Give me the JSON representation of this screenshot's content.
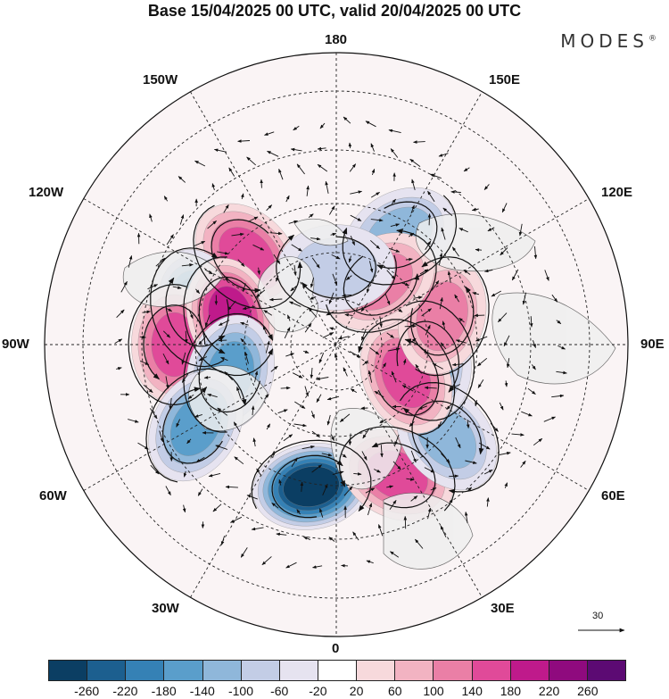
{
  "title": "Base 15/04/2025 00 UTC, valid 20/04/2025 00 UTC",
  "brand": "MODES",
  "brand_mark": "®",
  "longitude_labels": {
    "top": "180",
    "bottom": "0",
    "left": "90W",
    "right": "90E",
    "upper_left_1": "150W",
    "upper_left_2": "120W",
    "upper_right_1": "150E",
    "upper_right_2": "120E",
    "lower_left_1": "60W",
    "lower_left_2": "30W",
    "lower_right_1": "60E",
    "lower_right_2": "30E"
  },
  "reference_vector_label": "30",
  "colorbar": {
    "colors": [
      "#0b3e63",
      "#1c5f8f",
      "#3581b5",
      "#5a9ecb",
      "#8fb7da",
      "#c3cde6",
      "#e6e3f0",
      "#ffffff",
      "#f7d9dc",
      "#f2b3c2",
      "#ea7fa6",
      "#e04a99",
      "#bf1a8b",
      "#8f0a7e",
      "#5c0a73"
    ],
    "tick_labels": [
      "-260",
      "-220",
      "-180",
      "-140",
      "-100",
      "-60",
      "-20",
      "20",
      "60",
      "100",
      "140",
      "180",
      "220",
      "260"
    ]
  },
  "map_data": {
    "projection": "north polar stereographic",
    "anomaly_centers": [
      {
        "lon": 150,
        "lat": 50,
        "value": -120
      },
      {
        "lon": -135,
        "lat": 50,
        "value": 140
      },
      {
        "lon": -105,
        "lat": 45,
        "value": -200
      },
      {
        "lon": -90,
        "lat": 40,
        "value": 140
      },
      {
        "lon": -105,
        "lat": 55,
        "value": 180
      },
      {
        "lon": -75,
        "lat": 55,
        "value": -140
      },
      {
        "lon": -60,
        "lat": 40,
        "value": -160
      },
      {
        "lon": -10,
        "lat": 45,
        "value": -260
      },
      {
        "lon": 25,
        "lat": 45,
        "value": 170
      },
      {
        "lon": 50,
        "lat": 45,
        "value": -100
      },
      {
        "lon": 80,
        "lat": 60,
        "value": -120
      },
      {
        "lon": 65,
        "lat": 65,
        "value": 140
      },
      {
        "lon": 105,
        "lat": 55,
        "value": 120
      },
      {
        "lon": 145,
        "lat": 65,
        "value": 100
      },
      {
        "lon": 180,
        "lat": 65,
        "value": -80
      }
    ]
  }
}
